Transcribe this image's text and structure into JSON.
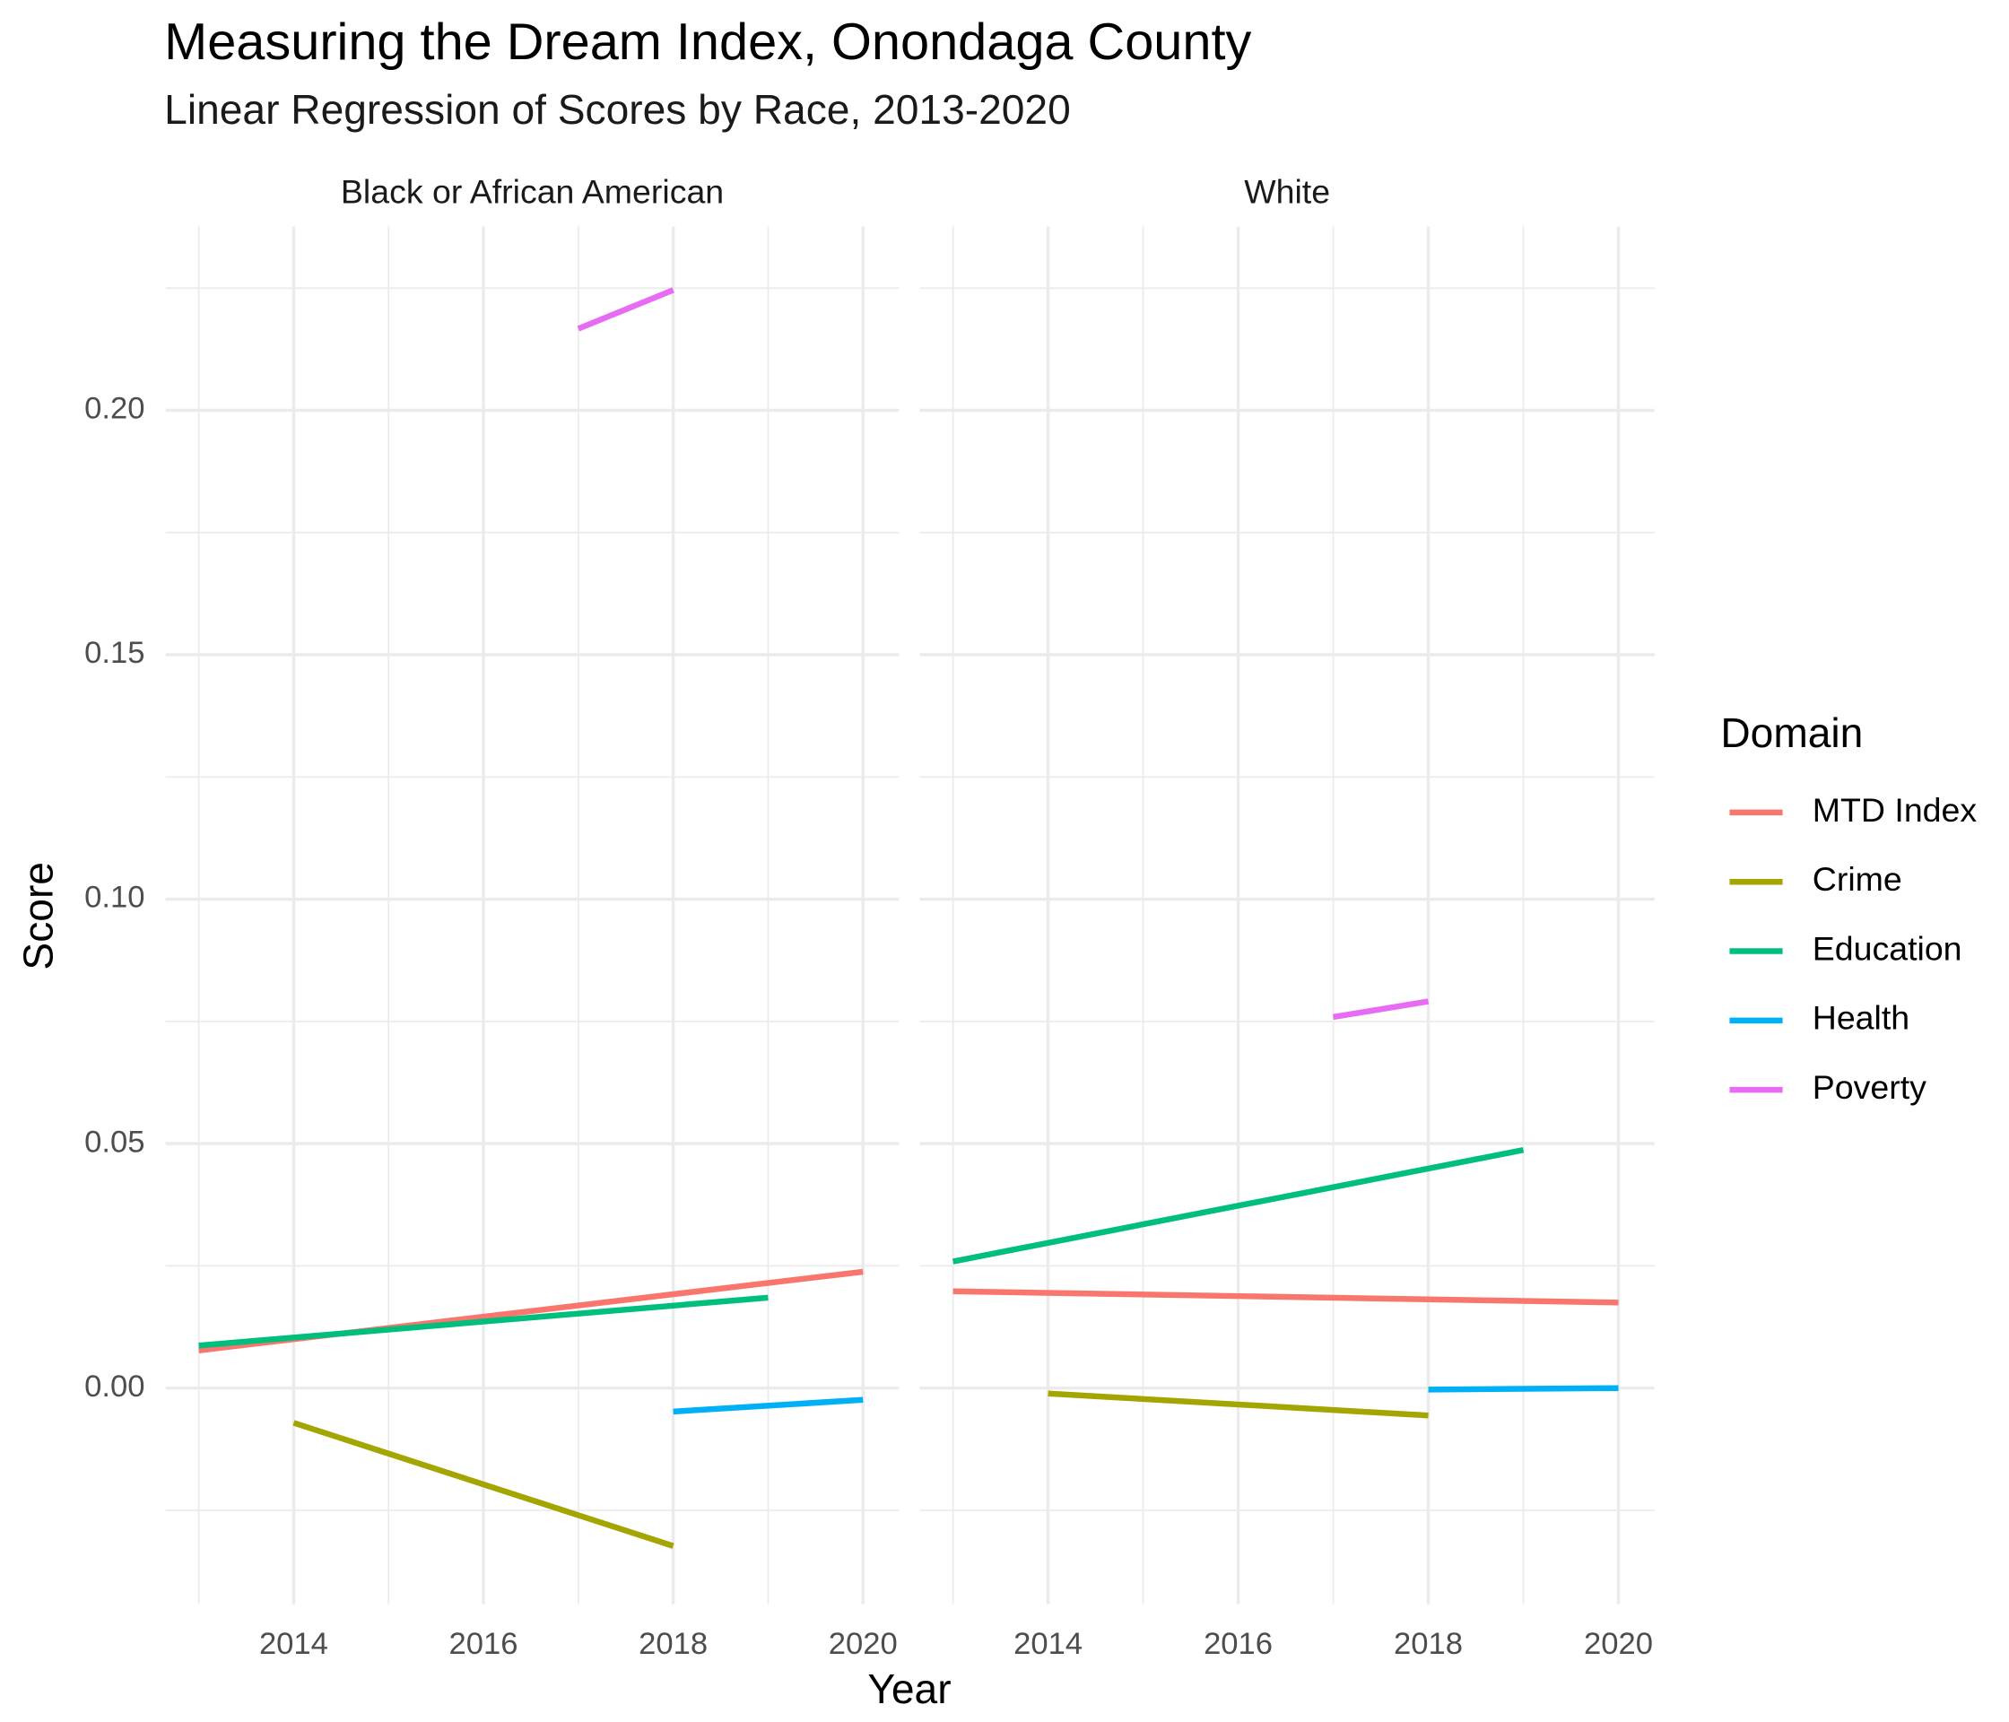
{
  "chart_data": {
    "type": "line",
    "title": "Measuring the Dream Index, Onondaga County",
    "subtitle": "Linear Regression of Scores by Race, 2013-2020",
    "x_label": "Year",
    "y_label": "Score",
    "legend_title": "Domain",
    "legend_position": "right",
    "grid": true,
    "xlim": [
      2012.65,
      2020.38
    ],
    "xticks": [
      2014,
      2016,
      2018,
      2020
    ],
    "ylim": [
      -0.0442,
      0.2376
    ],
    "yticks": [
      {
        "value": 0,
        "label": "0.00"
      },
      0.05,
      {
        "value": 0.1,
        "label": "0.10"
      },
      0.15,
      {
        "value": 0.2,
        "label": "0.20"
      }
    ],
    "series": [
      {
        "name": "MTD Index",
        "color": "#f8766d"
      },
      {
        "name": "Crime",
        "color": "#a3a500"
      },
      {
        "name": "Education",
        "color": "#00bf7d"
      },
      {
        "name": "Health",
        "color": "#00b0f6"
      },
      {
        "name": "Poverty",
        "color": "#e76bf3"
      }
    ],
    "facets": [
      {
        "title": "Black or African American",
        "series": [
          {
            "x": [
              2013,
              2020
            ],
            "values": [
              0.0077,
              0.0238
            ]
          },
          {
            "x": [
              2014,
              2018
            ],
            "values": [
              -0.0071,
              -0.0323
            ]
          },
          {
            "x": [
              2013,
              2019
            ],
            "values": [
              0.0087,
              0.0185
            ]
          },
          {
            "x": [
              2018,
              2020
            ],
            "values": [
              -0.0048,
              -0.0024
            ]
          },
          {
            "x": [
              2017,
              2018
            ],
            "values": [
              0.2167,
              0.2246
            ]
          }
        ]
      },
      {
        "title": "White",
        "series": [
          {
            "x": [
              2013,
              2020
            ],
            "values": [
              0.0198,
              0.0175
            ]
          },
          {
            "x": [
              2014,
              2018
            ],
            "values": [
              -0.0011,
              -0.0056
            ]
          },
          {
            "x": [
              2013,
              2019
            ],
            "values": [
              0.0259,
              0.0487
            ]
          },
          {
            "x": [
              2018,
              2020
            ],
            "values": [
              -0.0003,
              0
            ]
          },
          {
            "x": [
              2017,
              2018
            ],
            "values": [
              0.0759,
              0.0791
            ]
          }
        ]
      }
    ]
  }
}
